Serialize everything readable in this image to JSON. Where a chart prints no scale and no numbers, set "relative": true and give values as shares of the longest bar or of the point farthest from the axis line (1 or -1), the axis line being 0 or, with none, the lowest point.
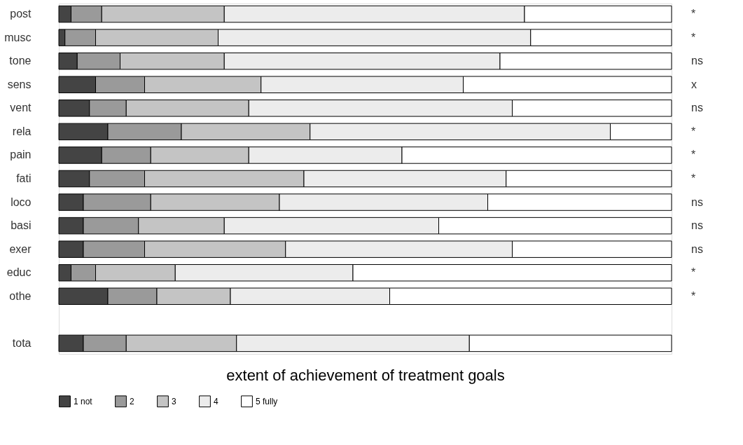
{
  "chart_data": {
    "type": "bar",
    "orientation": "horizontal",
    "stacked": true,
    "relative": true,
    "xlabel": "extent of achievement of treatment goals",
    "legend": "bottom",
    "categories": [
      "post",
      "musc",
      "tone",
      "sens",
      "vent",
      "rela",
      "pain",
      "fati",
      "loco",
      "basi",
      "exer",
      "educ",
      "othe",
      null,
      "tota"
    ],
    "series": [
      {
        "name": "1 not",
        "color": "#444444",
        "values": [
          0.02,
          0.01,
          0.03,
          0.06,
          0.05,
          0.08,
          0.07,
          0.05,
          0.04,
          0.04,
          0.04,
          0.02,
          0.08,
          null,
          0.04
        ]
      },
      {
        "name": "2",
        "color": "#9a9a9a",
        "values": [
          0.05,
          0.05,
          0.07,
          0.08,
          0.06,
          0.12,
          0.08,
          0.09,
          0.11,
          0.09,
          0.1,
          0.04,
          0.08,
          null,
          0.07
        ]
      },
      {
        "name": "3",
        "color": "#c4c4c4",
        "values": [
          0.2,
          0.2,
          0.17,
          0.19,
          0.2,
          0.21,
          0.16,
          0.26,
          0.21,
          0.14,
          0.23,
          0.13,
          0.12,
          null,
          0.18
        ]
      },
      {
        "name": "4",
        "color": "#ececec",
        "values": [
          0.49,
          0.51,
          0.45,
          0.33,
          0.43,
          0.49,
          0.25,
          0.33,
          0.34,
          0.35,
          0.37,
          0.29,
          0.26,
          null,
          0.38
        ]
      },
      {
        "name": "5 fully",
        "color": "#ffffff",
        "values": [
          0.24,
          0.23,
          0.28,
          0.34,
          0.26,
          0.1,
          0.44,
          0.27,
          0.3,
          0.38,
          0.26,
          0.52,
          0.46,
          null,
          0.33
        ]
      }
    ],
    "annotations": [
      "*",
      "*",
      "ns",
      "x",
      "ns",
      "*",
      "*",
      "*",
      "ns",
      "ns",
      "ns",
      "*",
      "*"
    ]
  }
}
